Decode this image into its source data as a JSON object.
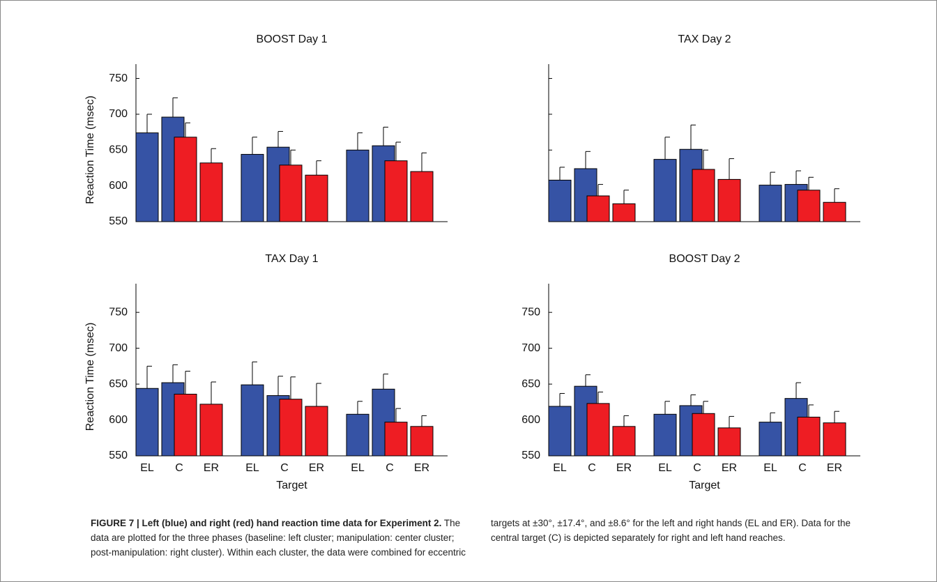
{
  "chart_data": [
    {
      "type": "bar",
      "title": "BOOST Day 1",
      "ylabel": "Reaction Time (msec)",
      "categories": [
        null,
        null,
        null,
        null,
        null,
        null,
        null,
        null,
        null
      ],
      "series": [
        {
          "color": "#3653a5",
          "values": [
            674,
            696,
            null,
            644,
            654,
            null,
            650,
            656,
            null
          ],
          "errors": [
            26,
            27,
            null,
            24,
            22,
            null,
            24,
            26,
            null
          ]
        },
        {
          "color": "#ee1d23",
          "values": [
            null,
            668,
            632,
            null,
            629,
            615,
            null,
            635,
            620
          ],
          "errors": [
            null,
            20,
            20,
            null,
            21,
            20,
            null,
            26,
            26
          ]
        }
      ],
      "ylim": [
        550,
        770
      ],
      "yticks": [
        550,
        600,
        650,
        700,
        750
      ],
      "ytick_labels": true
    },
    {
      "type": "bar",
      "title": "TAX Day 2",
      "categories": [
        null,
        null,
        null,
        null,
        null,
        null,
        null,
        null,
        null
      ],
      "series": [
        {
          "color": "#3653a5",
          "values": [
            608,
            624,
            null,
            637,
            651,
            null,
            601,
            602,
            null
          ],
          "errors": [
            18,
            24,
            null,
            31,
            34,
            null,
            18,
            19,
            null
          ]
        },
        {
          "color": "#ee1d23",
          "values": [
            null,
            586,
            575,
            null,
            623,
            609,
            null,
            594,
            577
          ],
          "errors": [
            null,
            16,
            19,
            null,
            27,
            29,
            null,
            18,
            19
          ]
        }
      ],
      "ylim": [
        550,
        770
      ],
      "yticks": [
        550,
        600,
        650,
        700,
        750
      ],
      "ytick_labels": false
    },
    {
      "type": "bar",
      "title": "TAX Day 1",
      "ylabel": "Reaction Time (msec)",
      "xlabel": "Target",
      "categories": [
        "EL",
        "C",
        "ER",
        "EL",
        "C",
        "ER",
        "EL",
        "C",
        "ER"
      ],
      "series": [
        {
          "color": "#3653a5",
          "values": [
            644,
            652,
            null,
            649,
            634,
            null,
            608,
            643,
            null
          ],
          "errors": [
            31,
            25,
            null,
            32,
            27,
            null,
            18,
            21,
            null
          ]
        },
        {
          "color": "#ee1d23",
          "values": [
            null,
            636,
            622,
            null,
            629,
            619,
            null,
            597,
            591
          ],
          "errors": [
            null,
            32,
            31,
            null,
            31,
            32,
            null,
            19,
            15
          ]
        }
      ],
      "ylim": [
        550,
        790
      ],
      "yticks": [
        550,
        600,
        650,
        700,
        750
      ],
      "ytick_labels": true
    },
    {
      "type": "bar",
      "title": "BOOST Day 2",
      "xlabel": "Target",
      "categories": [
        "EL",
        "C",
        "ER",
        "EL",
        "C",
        "ER",
        "EL",
        "C",
        "ER"
      ],
      "series": [
        {
          "color": "#3653a5",
          "values": [
            619,
            647,
            null,
            608,
            620,
            null,
            597,
            630,
            null
          ],
          "errors": [
            18,
            16,
            null,
            18,
            15,
            null,
            13,
            22,
            null
          ]
        },
        {
          "color": "#ee1d23",
          "values": [
            null,
            623,
            591,
            null,
            609,
            589,
            null,
            604,
            596
          ],
          "errors": [
            null,
            16,
            15,
            null,
            17,
            16,
            null,
            17,
            16
          ]
        }
      ],
      "ylim": [
        550,
        790
      ],
      "yticks": [
        550,
        600,
        650,
        700,
        750
      ],
      "ytick_labels": true
    }
  ],
  "caption": {
    "label": "FIGURE 7 | Left (blue) and right (red) hand reaction time data for Experiment 2.",
    "text": "The data are plotted for the three phases (baseline: left cluster; manipulation: center cluster; post-manipulation: right cluster). Within each cluster, the data were combined for eccentric targets at ±30°, ±17.4°, and ±8.6° for the left and right hands (EL and ER). Data for the central target (C) is depicted separately for right and left hand reaches."
  }
}
